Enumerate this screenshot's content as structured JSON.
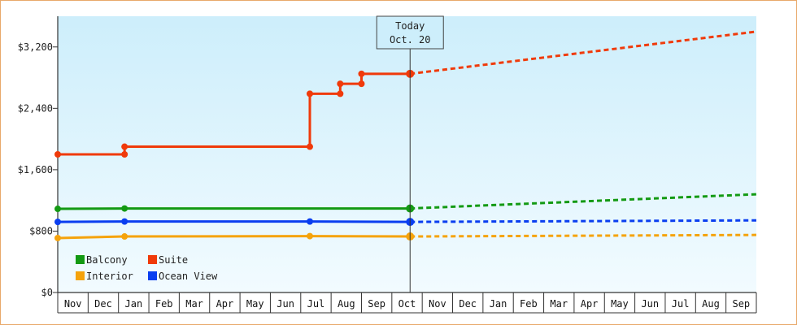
{
  "chart_data": {
    "type": "line",
    "title": "",
    "xlabel": "",
    "ylabel": "",
    "ylim": [
      0,
      3600
    ],
    "y_ticks": [
      {
        "value": 0,
        "label": "$0"
      },
      {
        "value": 800,
        "label": "$800"
      },
      {
        "value": 1600,
        "label": "$1,600"
      },
      {
        "value": 2400,
        "label": "$2,400"
      },
      {
        "value": 3200,
        "label": "$3,200"
      }
    ],
    "months": [
      "Nov",
      "Dec",
      "Jan",
      "Feb",
      "Mar",
      "Apr",
      "May",
      "Jun",
      "Jul",
      "Aug",
      "Sep",
      "Oct",
      "Nov",
      "Dec",
      "Jan",
      "Feb",
      "Mar",
      "Apr",
      "May",
      "Jun",
      "Jul",
      "Aug",
      "Sep"
    ],
    "today": {
      "line1": "Today",
      "line2": "Oct. 20",
      "x": 11.6
    },
    "legend": {
      "placement": "bottom-left"
    },
    "grid": false,
    "series": [
      {
        "name": "Balcony",
        "color": "#139a13",
        "history": [
          [
            0,
            1090
          ],
          [
            2.2,
            1095
          ],
          [
            11.6,
            1095
          ]
        ],
        "markers": [
          [
            0,
            1090
          ],
          [
            2.2,
            1095
          ],
          [
            11.6,
            1095
          ]
        ],
        "forecast": [
          [
            11.6,
            1095
          ],
          [
            23,
            1280
          ]
        ]
      },
      {
        "name": "Interior",
        "color": "#f5a30c",
        "history": [
          [
            0,
            710
          ],
          [
            2.2,
            730
          ],
          [
            8.3,
            735
          ],
          [
            11.6,
            730
          ]
        ],
        "markers": [
          [
            0,
            710
          ],
          [
            2.2,
            730
          ],
          [
            8.3,
            735
          ],
          [
            11.6,
            730
          ]
        ],
        "forecast": [
          [
            11.6,
            730
          ],
          [
            23,
            750
          ]
        ]
      },
      {
        "name": "Suite",
        "color": "#f03a0a",
        "history": [
          [
            0,
            1800
          ],
          [
            2.2,
            1800
          ],
          [
            2.2,
            1900
          ],
          [
            8.3,
            1900
          ],
          [
            8.3,
            2590
          ],
          [
            9.3,
            2590
          ],
          [
            9.3,
            2720
          ],
          [
            10.0,
            2720
          ],
          [
            10.0,
            2850
          ],
          [
            11.6,
            2850
          ]
        ],
        "markers": [
          [
            0,
            1800
          ],
          [
            2.2,
            1800
          ],
          [
            2.2,
            1900
          ],
          [
            8.3,
            1900
          ],
          [
            8.3,
            2590
          ],
          [
            9.3,
            2590
          ],
          [
            9.3,
            2720
          ],
          [
            10.0,
            2720
          ],
          [
            10.0,
            2850
          ],
          [
            11.6,
            2850
          ]
        ],
        "forecast": [
          [
            11.6,
            2850
          ],
          [
            23,
            3400
          ]
        ]
      },
      {
        "name": "Ocean View",
        "color": "#0a3ef0",
        "history": [
          [
            0,
            920
          ],
          [
            2.2,
            925
          ],
          [
            8.3,
            925
          ],
          [
            11.6,
            920
          ]
        ],
        "markers": [
          [
            0,
            920
          ],
          [
            2.2,
            925
          ],
          [
            8.3,
            925
          ],
          [
            11.6,
            920
          ]
        ],
        "forecast": [
          [
            11.6,
            920
          ],
          [
            23,
            940
          ]
        ]
      }
    ]
  }
}
